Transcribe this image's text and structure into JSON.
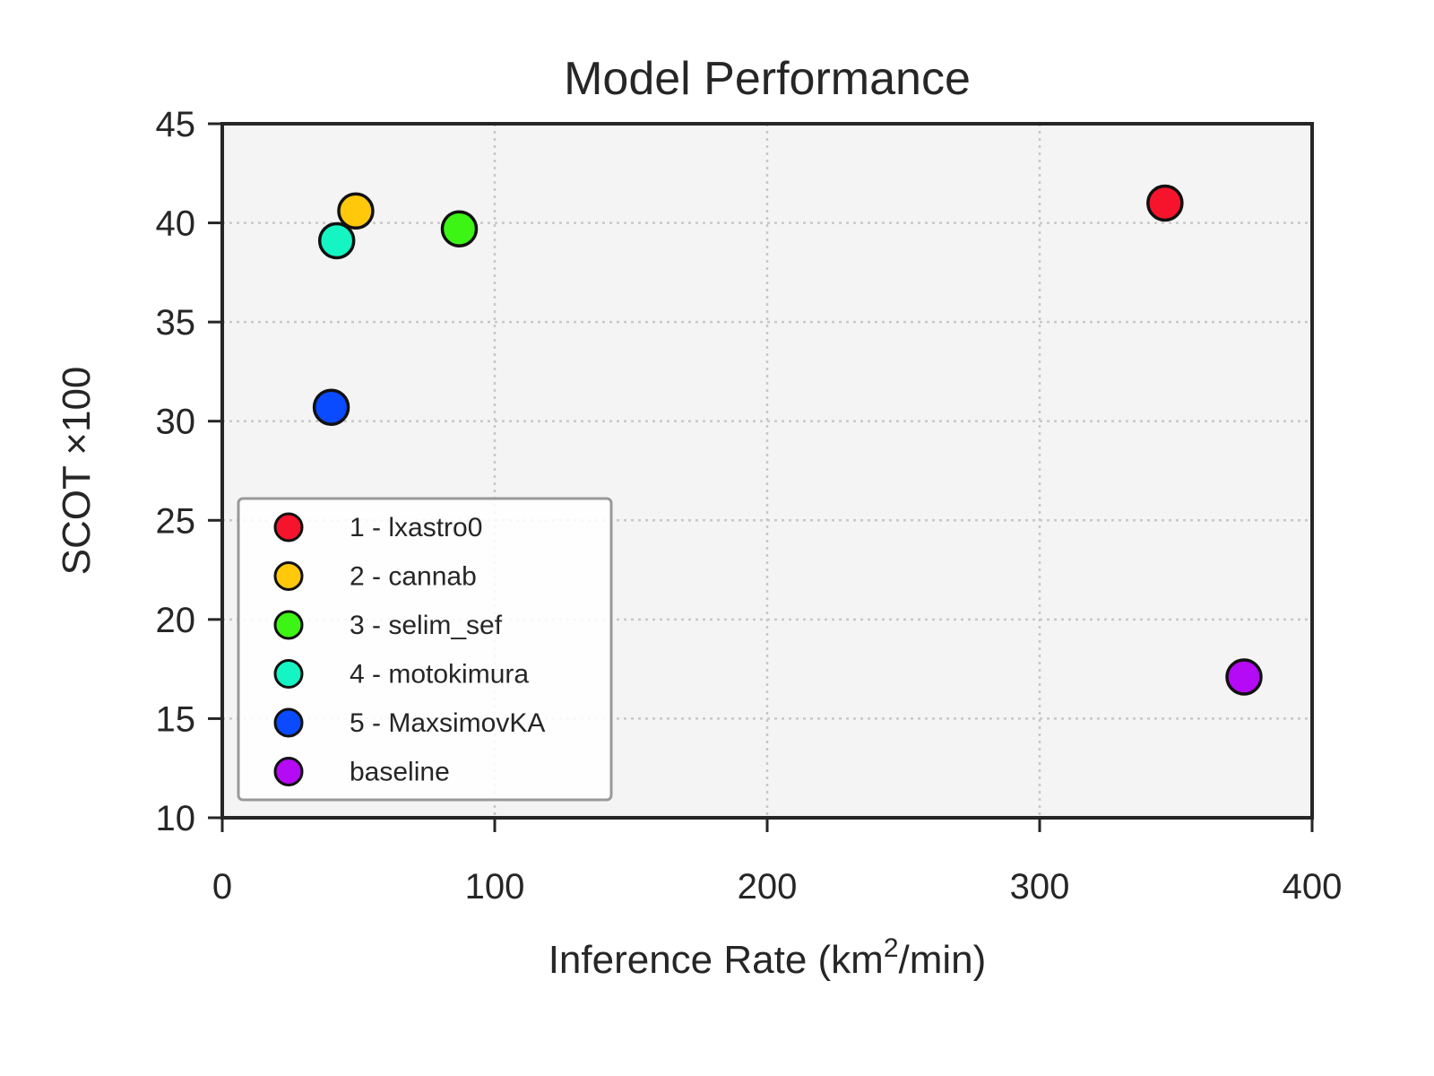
{
  "chart_data": {
    "type": "scatter",
    "title": "Model Performance",
    "xlabel": {
      "prefix": "Inference Rate (km",
      "superscript": "2",
      "suffix": "/min)"
    },
    "ylabel": "SCOT ×100",
    "xlim": [
      0,
      400
    ],
    "ylim": [
      10,
      45
    ],
    "xticks": [
      "0",
      "100",
      "200",
      "300",
      "400"
    ],
    "yticks": [
      "10",
      "15",
      "20",
      "25",
      "30",
      "35",
      "40",
      "45"
    ],
    "grid": true,
    "legend_position": "lower-left",
    "series": [
      {
        "name": "1 - lxastro0",
        "color": "#f5142c",
        "x": 346,
        "y": 41.0
      },
      {
        "name": "2 - cannab",
        "color": "#ffc80a",
        "x": 49,
        "y": 40.6
      },
      {
        "name": "3 - selim_sef",
        "color": "#3cf514",
        "x": 87,
        "y": 39.7
      },
      {
        "name": "4 - motokimura",
        "color": "#14f5c3",
        "x": 42,
        "y": 39.1
      },
      {
        "name": "5 - MaxsimovKA",
        "color": "#0a4bff",
        "x": 40,
        "y": 30.7
      },
      {
        "name": "baseline",
        "color": "#b40af5",
        "x": 375,
        "y": 17.1
      }
    ]
  }
}
